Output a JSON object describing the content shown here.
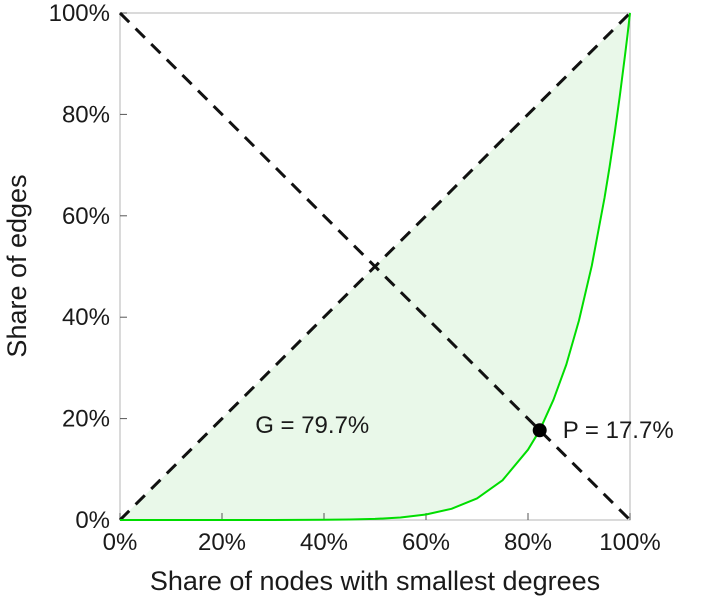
{
  "chart_data": {
    "type": "line",
    "title": "",
    "xlabel": "Share of nodes with smallest degrees",
    "ylabel": "Share of edges",
    "xlim": [
      0,
      1
    ],
    "ylim": [
      0,
      1
    ],
    "grid": false,
    "legend": "none",
    "x_ticks": {
      "values": [
        0,
        0.2,
        0.4,
        0.6,
        0.8,
        1
      ],
      "labels": [
        "0%",
        "20%",
        "40%",
        "60%",
        "80%",
        "100%"
      ]
    },
    "y_ticks": {
      "values": [
        0,
        0.2,
        0.4,
        0.6,
        0.8,
        1
      ],
      "labels": [
        "0%",
        "20%",
        "40%",
        "60%",
        "80%",
        "100%"
      ]
    },
    "series": [
      {
        "name": "equality-line",
        "style": "dashed",
        "color": "#111111",
        "width": 3,
        "dash": "13 9",
        "x": [
          0,
          1
        ],
        "y": [
          0,
          1
        ]
      },
      {
        "name": "anti-diagonal-line",
        "style": "dashed",
        "color": "#111111",
        "width": 3,
        "dash": "13 9",
        "x": [
          0,
          1
        ],
        "y": [
          1,
          0
        ]
      },
      {
        "name": "lorenz-curve",
        "style": "solid",
        "color": "#00dd00",
        "width": 2,
        "x": [
          0,
          0.05,
          0.1,
          0.15,
          0.2,
          0.25,
          0.3,
          0.35,
          0.4,
          0.45,
          0.5,
          0.55,
          0.6,
          0.65,
          0.7,
          0.75,
          0.8,
          0.823,
          0.85,
          0.875,
          0.9,
          0.925,
          0.95,
          0.96,
          0.97,
          0.98,
          0.99,
          0.995,
          0.998,
          1
        ],
        "y": [
          0,
          0,
          0,
          0,
          0,
          0,
          0,
          0.0001,
          0.0003,
          0.0009,
          0.0022,
          0.005,
          0.0109,
          0.0221,
          0.0426,
          0.0784,
          0.1387,
          0.177,
          0.2373,
          0.3066,
          0.3936,
          0.5016,
          0.6352,
          0.6967,
          0.7637,
          0.8362,
          0.9149,
          0.9566,
          0.9824,
          1
        ]
      }
    ],
    "point": {
      "x": 0.823,
      "y": 0.177
    },
    "gini_percent": 79.7,
    "pivot_percent": 17.7,
    "annotations": [
      {
        "name": "gini-annotation",
        "text": "G = 79.7%",
        "x": 0.265,
        "y": 0.172
      },
      {
        "name": "pivot-annotation",
        "text": "P = 17.7%",
        "x": 0.868,
        "y": 0.162
      }
    ],
    "colors": {
      "curve": "#00dd00",
      "area": "#e9f8e9",
      "dashed": "#111111",
      "point": "#000000",
      "box": "#b5b5b5",
      "tick": "#555555",
      "text": "#1a1a1a",
      "background": "#ffffff"
    }
  }
}
